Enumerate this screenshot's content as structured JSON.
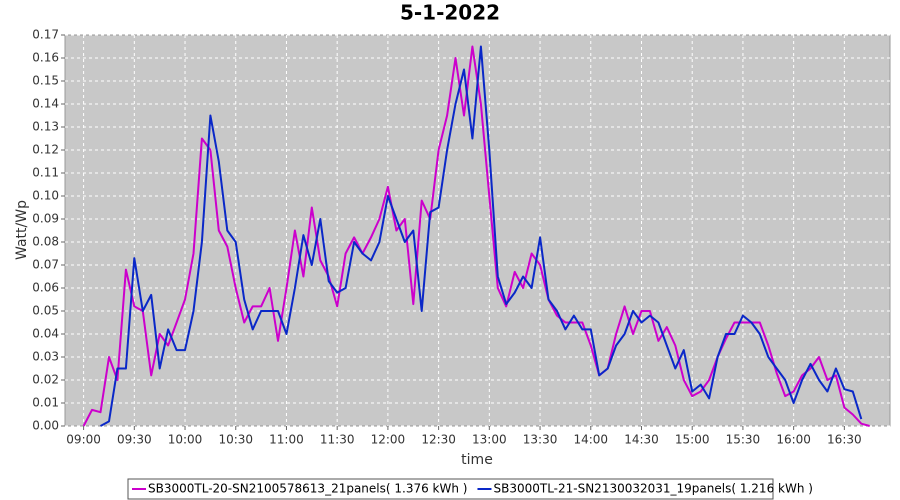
{
  "chart_data": {
    "type": "line",
    "title": "5-1-2022",
    "x_label": "time",
    "y_label": "Watt/Wp",
    "grid": true,
    "legend_position": "bottom",
    "xlim": [
      529,
      1017
    ],
    "ylim": [
      0,
      0.17
    ],
    "xticks": [
      {
        "value": 540,
        "label": "09:00"
      },
      {
        "value": 570,
        "label": "09:30"
      },
      {
        "value": 600,
        "label": "10:00"
      },
      {
        "value": 630,
        "label": "10:30"
      },
      {
        "value": 660,
        "label": "11:00"
      },
      {
        "value": 690,
        "label": "11:30"
      },
      {
        "value": 720,
        "label": "12:00"
      },
      {
        "value": 750,
        "label": "12:30"
      },
      {
        "value": 780,
        "label": "13:00"
      },
      {
        "value": 810,
        "label": "13:30"
      },
      {
        "value": 840,
        "label": "14:00"
      },
      {
        "value": 870,
        "label": "14:30"
      },
      {
        "value": 900,
        "label": "15:00"
      },
      {
        "value": 930,
        "label": "15:30"
      },
      {
        "value": 960,
        "label": "16:00"
      },
      {
        "value": 990,
        "label": "16:30"
      }
    ],
    "yticks": [
      {
        "value": 0,
        "label": "0.00"
      },
      0.01,
      0.02,
      0.03,
      0.04,
      0.05,
      0.06,
      0.07,
      0.08,
      0.09,
      {
        "value": 0.1,
        "label": "0.10"
      },
      0.11,
      0.12,
      0.13,
      0.14,
      0.15,
      0.16,
      0.17
    ],
    "x": [
      540,
      545,
      550,
      555,
      560,
      565,
      570,
      575,
      580,
      585,
      590,
      595,
      600,
      605,
      610,
      615,
      620,
      625,
      630,
      635,
      640,
      645,
      650,
      655,
      660,
      665,
      670,
      675,
      680,
      685,
      690,
      695,
      700,
      705,
      710,
      715,
      720,
      725,
      730,
      735,
      740,
      745,
      750,
      755,
      760,
      765,
      770,
      775,
      780,
      785,
      790,
      795,
      800,
      805,
      810,
      815,
      820,
      825,
      830,
      835,
      840,
      845,
      850,
      855,
      860,
      865,
      870,
      875,
      880,
      885,
      890,
      895,
      900,
      905,
      910,
      915,
      920,
      925,
      930,
      935,
      940,
      945,
      950,
      955,
      960,
      965,
      970,
      975,
      980,
      985,
      990,
      995,
      1000,
      1005
    ],
    "series": [
      {
        "name": "SB3000TL-20-SN2100578613_21panels( 1.376 kWh )",
        "color": "#cc00cc",
        "values": [
          0,
          0.007,
          0.006,
          0.03,
          0.02,
          0.068,
          0.052,
          0.05,
          0.022,
          0.04,
          0.035,
          0.045,
          0.055,
          0.075,
          0.125,
          0.12,
          0.085,
          0.078,
          0.06,
          0.045,
          0.052,
          0.052,
          0.06,
          0.037,
          0.06,
          0.085,
          0.065,
          0.095,
          0.072,
          0.065,
          0.052,
          0.075,
          0.082,
          0.075,
          0.082,
          0.09,
          0.104,
          0.085,
          0.09,
          0.053,
          0.098,
          0.09,
          0.12,
          0.135,
          0.16,
          0.135,
          0.165,
          0.14,
          0.1,
          0.06,
          0.052,
          0.067,
          0.06,
          0.075,
          0.07,
          0.055,
          0.048,
          0.045,
          0.045,
          0.045,
          0.035,
          0.022,
          0.025,
          0.04,
          0.052,
          0.04,
          0.05,
          0.05,
          0.037,
          0.043,
          0.035,
          0.02,
          0.013,
          0.015,
          0.02,
          0.03,
          0.038,
          0.045,
          0.045,
          0.045,
          0.045,
          0.035,
          0.023,
          0.013,
          0.015,
          0.022,
          0.025,
          0.03,
          0.02,
          0.022,
          0.008,
          0.005,
          0.001,
          0
        ]
      },
      {
        "name": "SB3000TL-21-SN2130032031_19panels( 1.216 kWh )",
        "color": "#0a28c8",
        "values": [
          null,
          null,
          0,
          0.002,
          0.025,
          0.025,
          0.073,
          0.05,
          0.057,
          0.025,
          0.042,
          0.033,
          0.033,
          0.05,
          0.08,
          0.135,
          0.115,
          0.085,
          0.08,
          0.055,
          0.042,
          0.05,
          0.05,
          0.05,
          0.04,
          0.06,
          0.083,
          0.07,
          0.09,
          0.063,
          0.058,
          0.06,
          0.08,
          0.075,
          0.072,
          0.08,
          0.1,
          0.09,
          0.08,
          0.085,
          0.05,
          0.093,
          0.095,
          0.12,
          0.14,
          0.155,
          0.125,
          0.165,
          0.12,
          0.065,
          0.053,
          0.058,
          0.065,
          0.06,
          0.082,
          0.055,
          0.05,
          0.042,
          0.048,
          0.042,
          0.042,
          0.022,
          0.025,
          0.035,
          0.04,
          0.05,
          0.045,
          0.048,
          0.045,
          0.035,
          0.025,
          0.033,
          0.015,
          0.018,
          0.012,
          0.03,
          0.04,
          0.04,
          0.048,
          0.045,
          0.04,
          0.03,
          0.025,
          0.02,
          0.01,
          0.02,
          0.027,
          0.02,
          0.015,
          0.025,
          0.016,
          0.015,
          0.003,
          null
        ]
      }
    ]
  }
}
